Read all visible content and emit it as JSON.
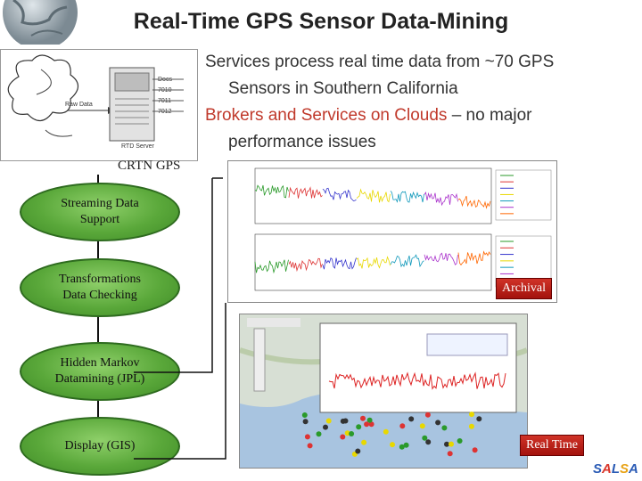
{
  "title": "Real-Time GPS Sensor Data-Mining",
  "bullets": [
    {
      "text": "Services process real time data from ~70 GPS Sensors in Southern California",
      "line1": "Services process real time data from ~70 GPS",
      "line2": "Sensors in Southern California"
    },
    {
      "line1_red": "Brokers and Services on Clouds",
      "line1_rest": " – no major",
      "line2": "performance issues"
    }
  ],
  "rtd_diagram": {
    "raw_data": "Raw Data",
    "server": "RTD Server",
    "ports": [
      "Docs",
      "7010",
      "7011",
      "7012"
    ]
  },
  "crtn_label": "CRTN GPS",
  "pipeline": [
    {
      "label_line1": "Streaming Data",
      "label_line2": "Support"
    },
    {
      "label_line1": "Transformations",
      "label_line2": "Data Checking"
    },
    {
      "label_line1": "Hidden Markov",
      "label_line2": "Datamining (JPL)"
    },
    {
      "label_line1": "Display (GIS)",
      "label_line2": ""
    }
  ],
  "archival_label": "Archival",
  "realtime_label": "Real Time",
  "logo_text": "SALSA",
  "colors": {
    "title": "#222222",
    "red_text": "#c0392b",
    "oval_green": "#5aa83a",
    "badge_red": "#b01a12"
  }
}
